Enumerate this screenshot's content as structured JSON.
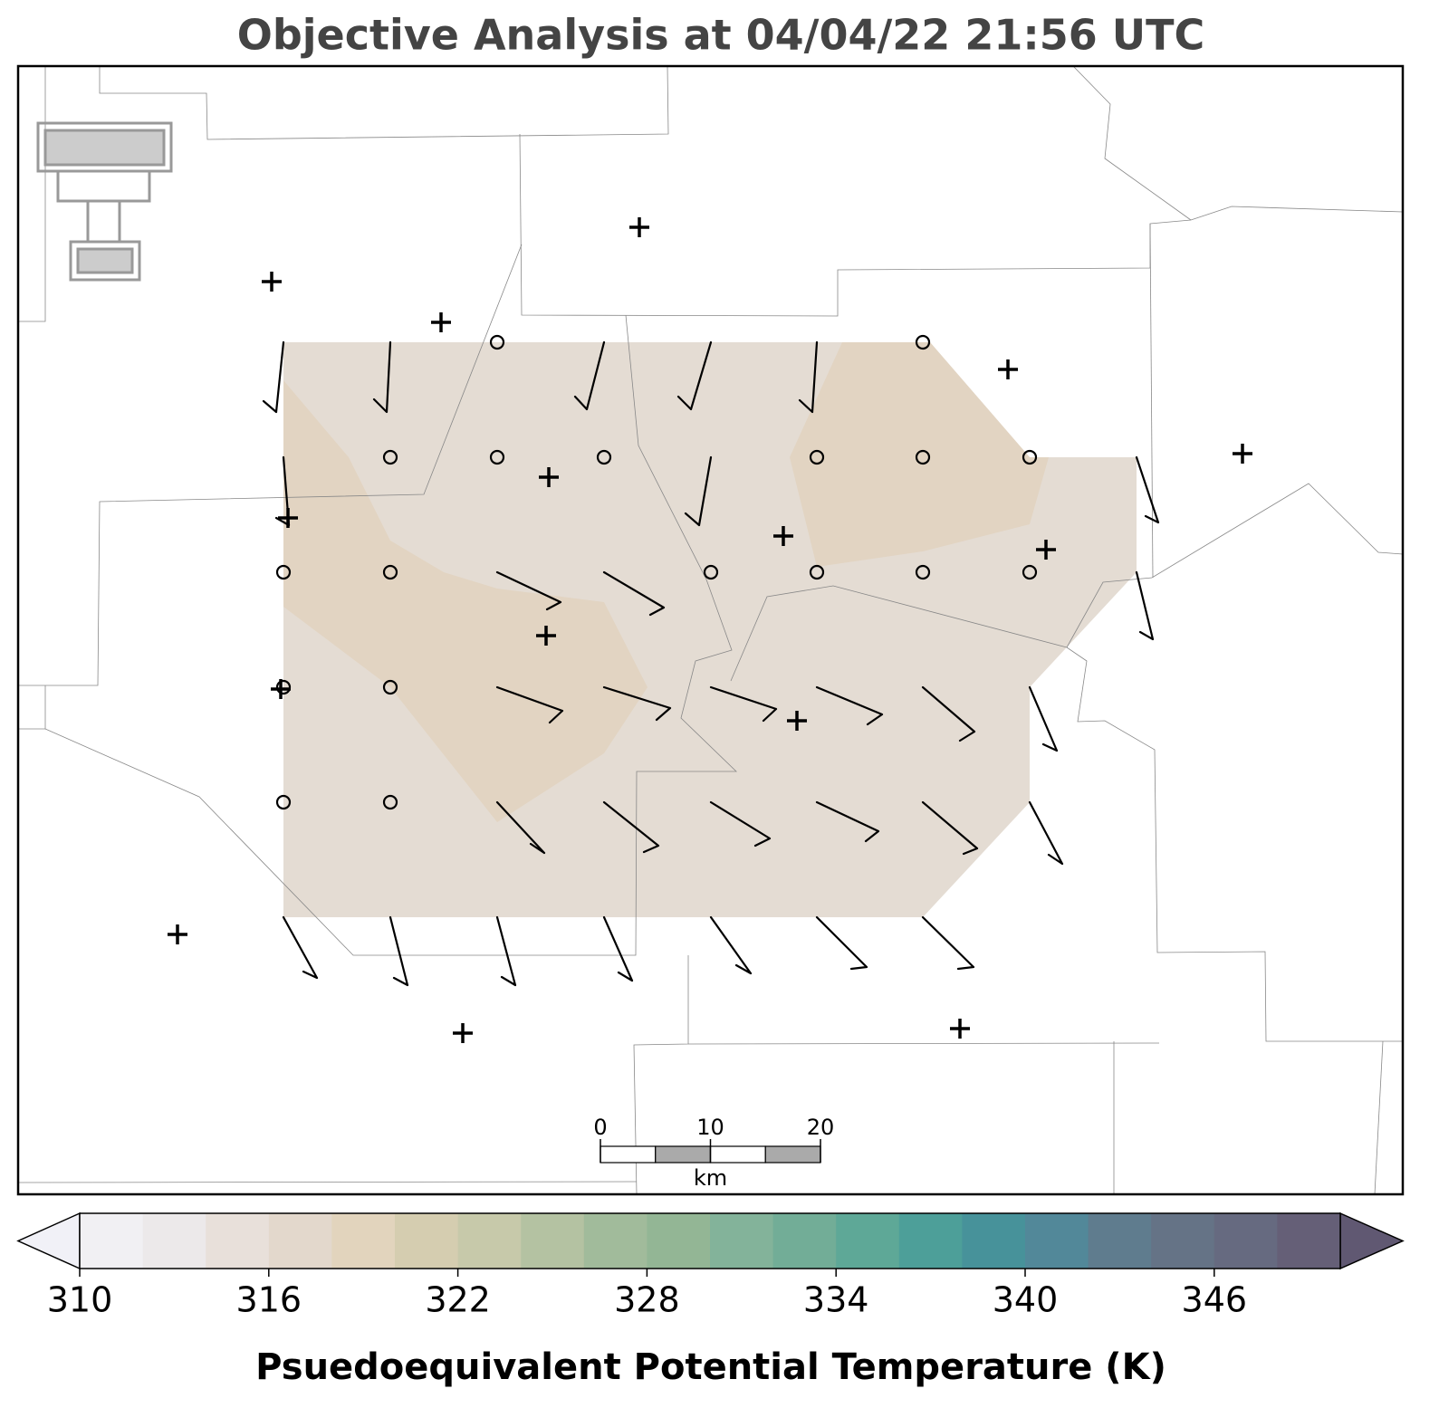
{
  "title": "Objective Analysis at 04/04/22 21:56 UTC",
  "colorbar": {
    "label": "Psuedoequivalent Potential Temperature (K)",
    "levels": [
      310,
      312,
      314,
      316,
      318,
      320,
      322,
      324,
      326,
      328,
      330,
      332,
      334,
      336,
      338,
      340,
      342,
      344,
      346,
      348,
      350
    ],
    "colors": [
      "#f1f0f3",
      "#ece9ea",
      "#e8e0da",
      "#e3d8cc",
      "#e2d4bd",
      "#d5cdb0",
      "#c7c9aa",
      "#b4c2a2",
      "#a1bb9b",
      "#93b695",
      "#83b39a",
      "#72ad97",
      "#5ea897",
      "#4d9f99",
      "#47929a",
      "#528899",
      "#5f7c8e",
      "#657386",
      "#666a80",
      "#655f77"
    ],
    "under_color": "#f1f1f7",
    "over_color": "#605872",
    "ticks": [
      310,
      316,
      322,
      328,
      334,
      340,
      346
    ]
  },
  "scale_bar": {
    "ticks": [
      0,
      10,
      20
    ],
    "unit": "km"
  }
}
